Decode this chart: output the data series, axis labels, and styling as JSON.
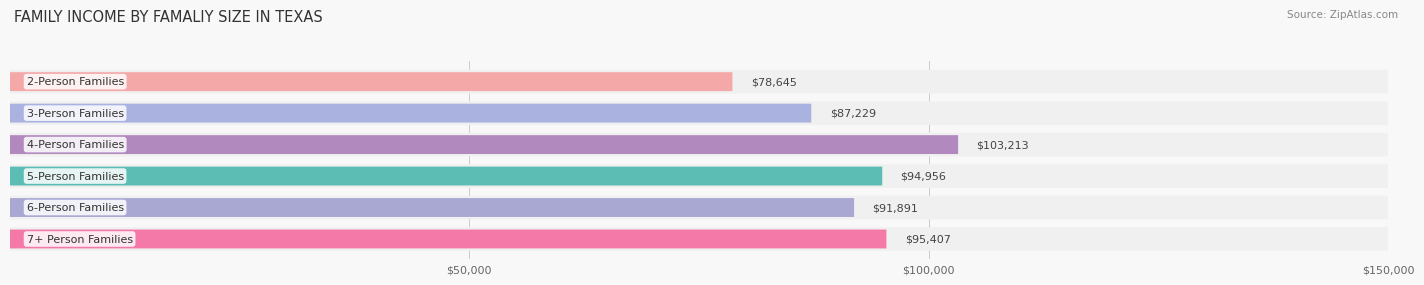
{
  "title": "FAMILY INCOME BY FAMALIY SIZE IN TEXAS",
  "source": "Source: ZipAtlas.com",
  "categories": [
    "2-Person Families",
    "3-Person Families",
    "4-Person Families",
    "5-Person Families",
    "6-Person Families",
    "7+ Person Families"
  ],
  "values": [
    78645,
    87229,
    103213,
    94956,
    91891,
    95407
  ],
  "labels": [
    "$78,645",
    "$87,229",
    "$103,213",
    "$94,956",
    "$91,891",
    "$95,407"
  ],
  "bar_colors": [
    "#f4a8a7",
    "#aab3e0",
    "#b289bf",
    "#5cbdb5",
    "#a9a8d3",
    "#f478a8"
  ],
  "bg_color": "#f0f0f0",
  "xlim": [
    0,
    150000
  ],
  "xticks": [
    50000,
    100000,
    150000
  ],
  "xticklabels": [
    "$50,000",
    "$100,000",
    "$150,000"
  ],
  "title_fontsize": 10.5,
  "label_fontsize": 8.0,
  "tick_fontsize": 8.0,
  "source_fontsize": 7.5,
  "figure_bg": "#f8f8f8"
}
